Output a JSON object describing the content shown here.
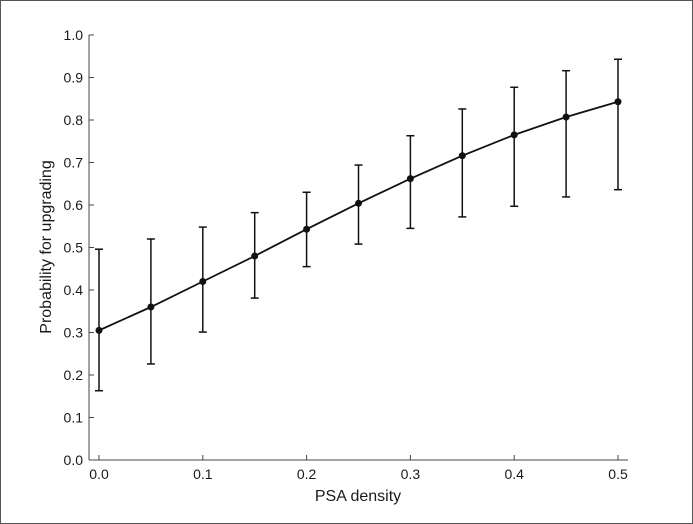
{
  "chart_data": {
    "type": "line",
    "title": "",
    "xlabel": "PSA density",
    "ylabel": "Probability for upgrading",
    "xlim": [
      0.0,
      0.5
    ],
    "ylim": [
      0.0,
      1.0
    ],
    "x_ticks": [
      "0.0",
      "0.1",
      "0.2",
      "0.3",
      "0.4",
      "0.5"
    ],
    "y_ticks": [
      "0.0",
      "0.1",
      "0.2",
      "0.3",
      "0.4",
      "0.5",
      "0.6",
      "0.7",
      "0.8",
      "0.9",
      "1.0"
    ],
    "grid": false,
    "series": [
      {
        "x": [
          0.0,
          0.05,
          0.1,
          0.15,
          0.2,
          0.25,
          0.3,
          0.35,
          0.4,
          0.45,
          0.5
        ],
        "y": [
          0.305,
          0.36,
          0.42,
          0.48,
          0.543,
          0.604,
          0.662,
          0.716,
          0.765,
          0.807,
          0.843
        ],
        "y_lower": [
          0.163,
          0.226,
          0.301,
          0.381,
          0.455,
          0.508,
          0.545,
          0.572,
          0.597,
          0.619,
          0.636
        ],
        "y_upper": [
          0.496,
          0.52,
          0.548,
          0.582,
          0.63,
          0.694,
          0.763,
          0.826,
          0.877,
          0.916,
          0.943
        ]
      }
    ],
    "colors": {
      "line": "#111111",
      "axis": "#444444"
    }
  }
}
